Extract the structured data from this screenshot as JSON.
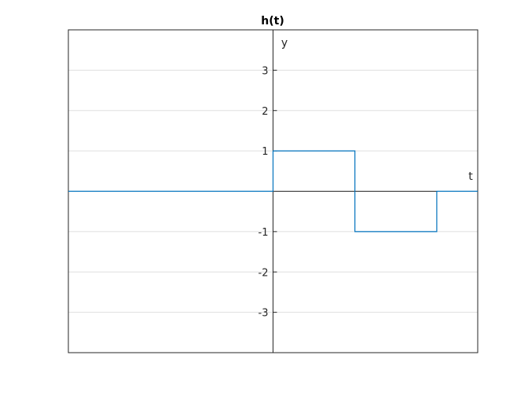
{
  "chart_data": {
    "type": "line",
    "title": "h(t)",
    "xlabel": "t",
    "ylabel": "y",
    "xlim": [
      -2.5,
      2.5
    ],
    "ylim": [
      -4,
      4
    ],
    "yticks": [
      3,
      2,
      1,
      -1,
      -2,
      -3
    ],
    "ytick_labels": [
      "3",
      "2",
      "1",
      "-1",
      "-2",
      "-3"
    ],
    "grid": true,
    "axes_through_origin": true,
    "series": [
      {
        "color": "#0072BD",
        "step_points": [
          [
            -2.5,
            0
          ],
          [
            0,
            0
          ],
          [
            0,
            1
          ],
          [
            1,
            1
          ],
          [
            1,
            -1
          ],
          [
            2,
            -1
          ],
          [
            2,
            0
          ],
          [
            2.5,
            0
          ]
        ]
      }
    ]
  },
  "colors": {
    "series": "#0072BD",
    "grid": "#dfdfdf",
    "axis": "#262626",
    "text": "#262626"
  }
}
